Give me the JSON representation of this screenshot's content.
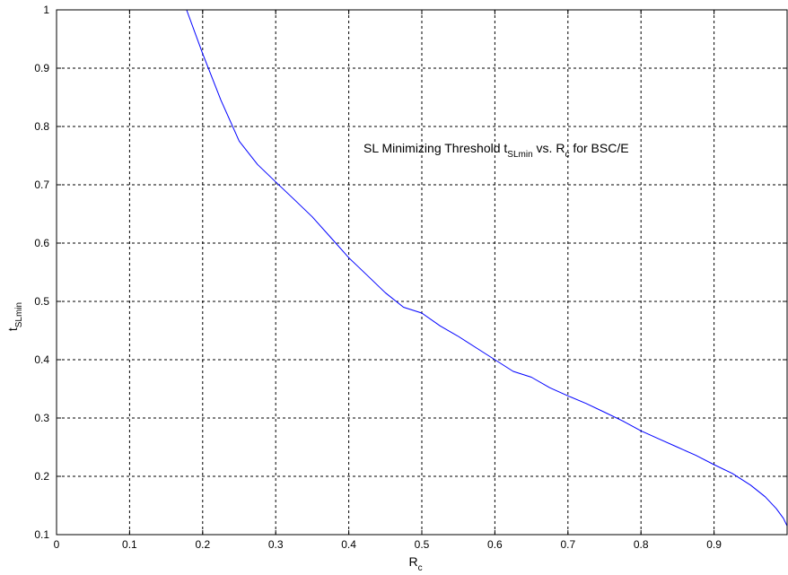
{
  "chart_data": {
    "type": "line",
    "title": "",
    "annotation": {
      "prefix": "SL Minimizing Threshold t",
      "prefix_sub": "SLmin",
      "middle": " vs. R",
      "middle_sub": "c",
      "suffix": " for BSC/E"
    },
    "xlabel": "R",
    "xlabel_sub": "c",
    "ylabel": "t",
    "ylabel_sub": "SLmin",
    "xlim": [
      0,
      1
    ],
    "ylim": [
      0.1,
      1
    ],
    "xticks": [
      0,
      0.1,
      0.2,
      0.3,
      0.4,
      0.5,
      0.6,
      0.7,
      0.8,
      0.9
    ],
    "xtick_labels": [
      "0",
      "0.1",
      "0.2",
      "0.3",
      "0.4",
      "0.5",
      "0.6",
      "0.7",
      "0.8",
      "0.9"
    ],
    "yticks": [
      0.1,
      0.2,
      0.3,
      0.4,
      0.5,
      0.6,
      0.7,
      0.8,
      0.9,
      1
    ],
    "ytick_labels": [
      "0.1",
      "0.2",
      "0.3",
      "0.4",
      "0.5",
      "0.6",
      "0.7",
      "0.8",
      "0.9",
      "1"
    ],
    "grid": true,
    "colors": {
      "line": "#0000ff",
      "grid": "#000000",
      "axes": "#000000"
    },
    "series": [
      {
        "x": [
          0,
          0.05,
          0.1,
          0.15,
          0.178,
          0.2,
          0.225,
          0.25,
          0.275,
          0.3,
          0.325,
          0.35,
          0.375,
          0.4,
          0.425,
          0.45,
          0.475,
          0.5,
          0.525,
          0.55,
          0.575,
          0.6,
          0.625,
          0.65,
          0.675,
          0.7,
          0.725,
          0.75,
          0.775,
          0.8,
          0.825,
          0.85,
          0.875,
          0.9,
          0.925,
          0.95,
          0.97,
          0.985,
          0.995,
          1.0
        ],
        "y": [
          1,
          1,
          1,
          1,
          1,
          0.925,
          0.845,
          0.775,
          0.735,
          0.705,
          0.675,
          0.645,
          0.61,
          0.575,
          0.545,
          0.515,
          0.49,
          0.48,
          0.458,
          0.44,
          0.42,
          0.4,
          0.38,
          0.37,
          0.352,
          0.338,
          0.325,
          0.31,
          0.295,
          0.278,
          0.264,
          0.25,
          0.236,
          0.22,
          0.205,
          0.185,
          0.165,
          0.145,
          0.128,
          0.115
        ]
      }
    ]
  }
}
